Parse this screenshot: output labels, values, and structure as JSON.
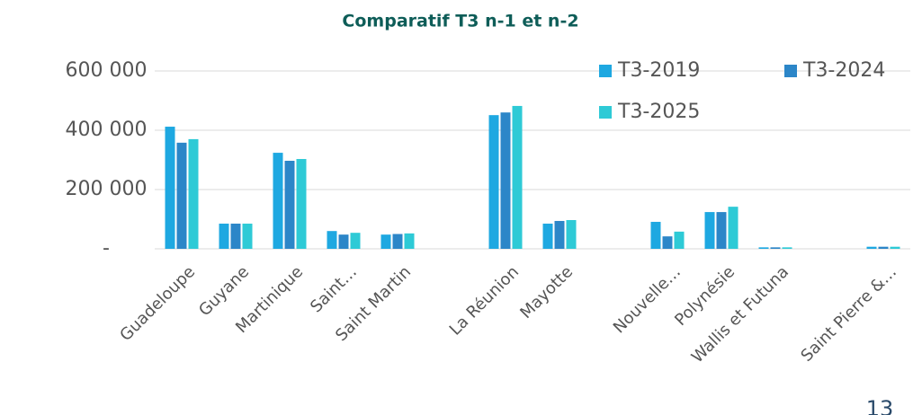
{
  "chart_data": {
    "type": "bar",
    "title": "Comparatif T3  n-1 et n-2",
    "categories": [
      "Guadeloupe",
      "Guyane",
      "Martinique",
      "Saint…",
      "Saint Martin",
      null,
      "La Réunion",
      "Mayotte",
      null,
      "Nouvelle…",
      "Polynésie",
      "Wallis et Futuna",
      null,
      "Saint Pierre &…"
    ],
    "series": [
      {
        "name": "T3-2019",
        "color": "#1ea8e1",
        "values": [
          412000,
          85000,
          324000,
          60000,
          48000,
          null,
          451000,
          85000,
          null,
          91000,
          124000,
          5000,
          null,
          7000
        ]
      },
      {
        "name": "T3-2024",
        "color": "#2c86c8",
        "values": [
          358000,
          85000,
          297000,
          48000,
          50000,
          null,
          460000,
          94000,
          null,
          42000,
          124000,
          5000,
          null,
          7000
        ]
      },
      {
        "name": "T3-2025",
        "color": "#2ecad6",
        "values": [
          370000,
          85000,
          303000,
          54000,
          52000,
          null,
          482000,
          97000,
          null,
          58000,
          142000,
          5000,
          null,
          7000
        ]
      }
    ],
    "ylim": [
      0,
      600000
    ],
    "yticks": [
      {
        "value": 0,
        "label": "-"
      },
      {
        "value": 200000,
        "label": "200 000"
      },
      {
        "value": 400000,
        "label": "400 000"
      },
      {
        "value": 600000,
        "label": "600 000"
      }
    ],
    "grid": true,
    "legend": "top-right"
  },
  "page_number": "13"
}
